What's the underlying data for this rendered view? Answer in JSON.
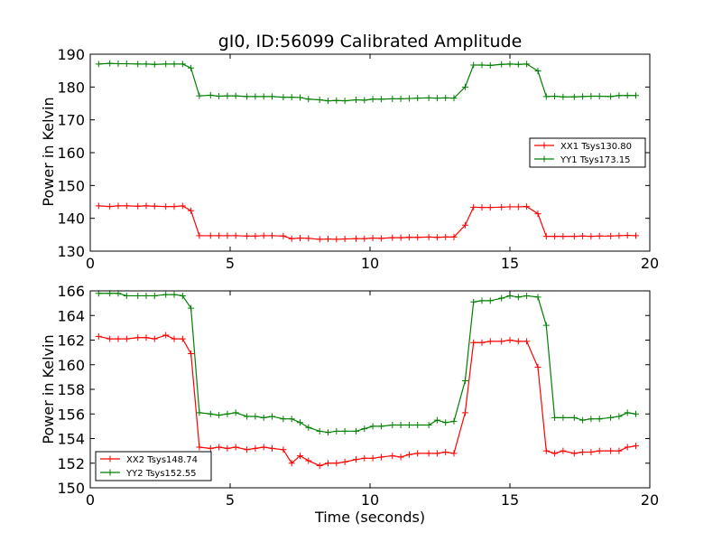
{
  "chart_data": [
    {
      "type": "line",
      "title": "gI0, ID:56099 Calibrated Amplitude",
      "xlabel": "",
      "ylabel": "Power in Kelvin",
      "xlim": [
        0,
        20
      ],
      "ylim": [
        130,
        190
      ],
      "xticks": [
        0,
        5,
        10,
        15,
        20
      ],
      "yticks": [
        130,
        140,
        150,
        160,
        170,
        180,
        190
      ],
      "legend_position": "center-right",
      "x": [
        0.3,
        0.7,
        1.0,
        1.3,
        1.7,
        2.0,
        2.3,
        2.7,
        3.0,
        3.3,
        3.6,
        3.9,
        4.3,
        4.6,
        4.9,
        5.2,
        5.6,
        5.9,
        6.2,
        6.5,
        6.9,
        7.2,
        7.5,
        7.8,
        8.2,
        8.5,
        8.8,
        9.1,
        9.5,
        9.8,
        10.1,
        10.4,
        10.8,
        11.1,
        11.4,
        11.7,
        12.1,
        12.4,
        12.7,
        13.0,
        13.4,
        13.7,
        14.0,
        14.3,
        14.7,
        15.0,
        15.3,
        15.6,
        16.0,
        16.3,
        16.6,
        16.9,
        17.3,
        17.6,
        17.9,
        18.2,
        18.6,
        18.9,
        19.2,
        19.5
      ],
      "series": [
        {
          "name": "XX1 Tsys130.80",
          "color": "#ff0000",
          "values": [
            143.8,
            143.6,
            143.8,
            143.8,
            143.7,
            143.8,
            143.7,
            143.6,
            143.6,
            143.8,
            142.3,
            134.7,
            134.7,
            134.7,
            134.7,
            134.7,
            134.6,
            134.6,
            134.7,
            134.7,
            134.6,
            133.8,
            134.0,
            133.9,
            133.6,
            133.7,
            133.6,
            133.7,
            133.8,
            133.8,
            134.0,
            133.9,
            134.1,
            134.1,
            134.2,
            134.2,
            134.3,
            134.2,
            134.3,
            134.3,
            137.9,
            143.4,
            143.3,
            143.3,
            143.4,
            143.5,
            143.5,
            143.6,
            141.4,
            134.5,
            134.5,
            134.5,
            134.5,
            134.6,
            134.5,
            134.6,
            134.6,
            134.7,
            134.8,
            134.7
          ]
        },
        {
          "name": "YY1 Tsys173.15",
          "color": "#008000",
          "values": [
            187.0,
            187.2,
            187.1,
            187.1,
            187.0,
            187.0,
            186.9,
            187.0,
            187.0,
            187.0,
            185.8,
            177.3,
            177.5,
            177.2,
            177.3,
            177.3,
            177.1,
            177.1,
            177.1,
            177.1,
            176.9,
            176.9,
            176.8,
            176.3,
            176.1,
            175.8,
            175.9,
            175.8,
            176.1,
            176.0,
            176.3,
            176.3,
            176.4,
            176.4,
            176.5,
            176.6,
            176.7,
            176.6,
            176.7,
            176.6,
            180.0,
            186.7,
            186.7,
            186.6,
            186.9,
            187.0,
            186.9,
            187.0,
            184.9,
            177.1,
            177.2,
            177.0,
            177.0,
            177.1,
            177.2,
            177.2,
            177.1,
            177.4,
            177.4,
            177.4
          ]
        }
      ]
    },
    {
      "type": "line",
      "title": "",
      "xlabel": "Time (seconds)",
      "ylabel": "Power in Kelvin",
      "xlim": [
        0,
        20
      ],
      "ylim": [
        150,
        166
      ],
      "xticks": [
        0,
        5,
        10,
        15,
        20
      ],
      "yticks": [
        150,
        152,
        154,
        156,
        158,
        160,
        162,
        164,
        166
      ],
      "legend_position": "lower-left",
      "x": [
        0.3,
        0.7,
        1.0,
        1.3,
        1.7,
        2.0,
        2.3,
        2.7,
        3.0,
        3.3,
        3.6,
        3.9,
        4.3,
        4.6,
        4.9,
        5.2,
        5.6,
        5.9,
        6.2,
        6.5,
        6.9,
        7.2,
        7.5,
        7.8,
        8.2,
        8.5,
        8.8,
        9.1,
        9.5,
        9.8,
        10.1,
        10.4,
        10.8,
        11.1,
        11.4,
        11.7,
        12.1,
        12.4,
        12.7,
        13.0,
        13.4,
        13.7,
        14.0,
        14.3,
        14.7,
        15.0,
        15.3,
        15.6,
        16.0,
        16.3,
        16.6,
        16.9,
        17.3,
        17.6,
        17.9,
        18.2,
        18.6,
        18.9,
        19.2,
        19.5
      ],
      "series": [
        {
          "name": "XX2 Tsys148.74",
          "color": "#ff0000",
          "values": [
            162.3,
            162.1,
            162.1,
            162.1,
            162.2,
            162.2,
            162.1,
            162.4,
            162.1,
            162.1,
            160.9,
            153.3,
            153.2,
            153.3,
            153.2,
            153.3,
            153.1,
            153.2,
            153.3,
            153.2,
            153.1,
            152.0,
            152.6,
            152.2,
            151.8,
            152.0,
            152.0,
            152.1,
            152.3,
            152.4,
            152.4,
            152.5,
            152.6,
            152.5,
            152.7,
            152.8,
            152.8,
            152.8,
            152.9,
            152.8,
            156.1,
            161.8,
            161.8,
            161.9,
            161.9,
            162.0,
            161.9,
            161.9,
            159.8,
            153.0,
            152.8,
            153.0,
            152.8,
            152.9,
            152.9,
            153.0,
            153.0,
            153.0,
            153.3,
            153.4
          ]
        },
        {
          "name": "YY2 Tsys152.55",
          "color": "#008000",
          "values": [
            165.8,
            165.8,
            165.8,
            165.6,
            165.6,
            165.6,
            165.6,
            165.7,
            165.7,
            165.6,
            164.6,
            156.1,
            156.0,
            155.9,
            156.0,
            156.1,
            155.8,
            155.8,
            155.7,
            155.8,
            155.6,
            155.6,
            155.3,
            154.9,
            154.6,
            154.5,
            154.6,
            154.6,
            154.6,
            154.8,
            155.0,
            155.0,
            155.1,
            155.1,
            155.1,
            155.1,
            155.1,
            155.5,
            155.3,
            155.4,
            158.7,
            165.1,
            165.2,
            165.2,
            165.4,
            165.6,
            165.5,
            165.6,
            165.5,
            163.2,
            155.7,
            155.7,
            155.7,
            155.5,
            155.6,
            155.6,
            155.7,
            155.8,
            156.1,
            156.0
          ]
        }
      ]
    }
  ]
}
